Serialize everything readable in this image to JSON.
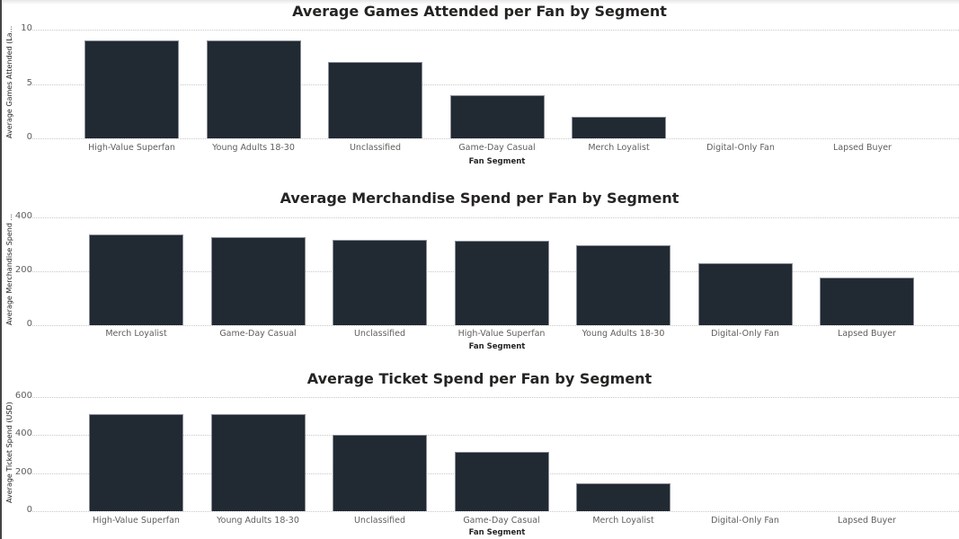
{
  "chart_data": [
    {
      "type": "bar",
      "title": "Average Games Attended per Fan by Segment",
      "xlabel": "Fan Segment",
      "ylabel": "Average Games Attended (La...",
      "categories": [
        "High-Value Superfan",
        "Young Adults 18-30",
        "Unclassified",
        "Game-Day Casual",
        "Merch Loyalist",
        "Digital-Only Fan",
        "Lapsed Buyer"
      ],
      "values": [
        9,
        9,
        7,
        4,
        2,
        0,
        0
      ],
      "yticks": [
        "0",
        "5",
        "10"
      ],
      "ylim": [
        0,
        10
      ],
      "grid": true
    },
    {
      "type": "bar",
      "title": "Average Merchandise Spend per Fan by Segment",
      "xlabel": "Fan Segment",
      "ylabel": "Average Merchandise Spend ...",
      "categories": [
        "Merch Loyalist",
        "Game-Day Casual",
        "Unclassified",
        "High-Value Superfan",
        "Young Adults 18-30",
        "Digital-Only Fan",
        "Lapsed Buyer"
      ],
      "values": [
        337,
        327,
        317,
        314,
        297,
        230,
        177
      ],
      "yticks": [
        "0",
        "200",
        "400"
      ],
      "ylim": [
        0,
        400
      ],
      "grid": true
    },
    {
      "type": "bar",
      "title": "Average Ticket Spend per Fan by Segment",
      "xlabel": "Fan Segment",
      "ylabel": "Average Ticket Spend (USD)",
      "categories": [
        "High-Value Superfan",
        "Young Adults 18-30",
        "Unclassified",
        "Game-Day Casual",
        "Merch Loyalist",
        "Digital-Only Fan",
        "Lapsed Buyer"
      ],
      "values": [
        510,
        510,
        402,
        312,
        146,
        0,
        0
      ],
      "yticks": [
        "0",
        "200",
        "400",
        "600"
      ],
      "ylim": [
        0,
        600
      ],
      "grid": true
    }
  ],
  "colors": {
    "bar": "#212933",
    "bar_border": "#8a8f96"
  }
}
